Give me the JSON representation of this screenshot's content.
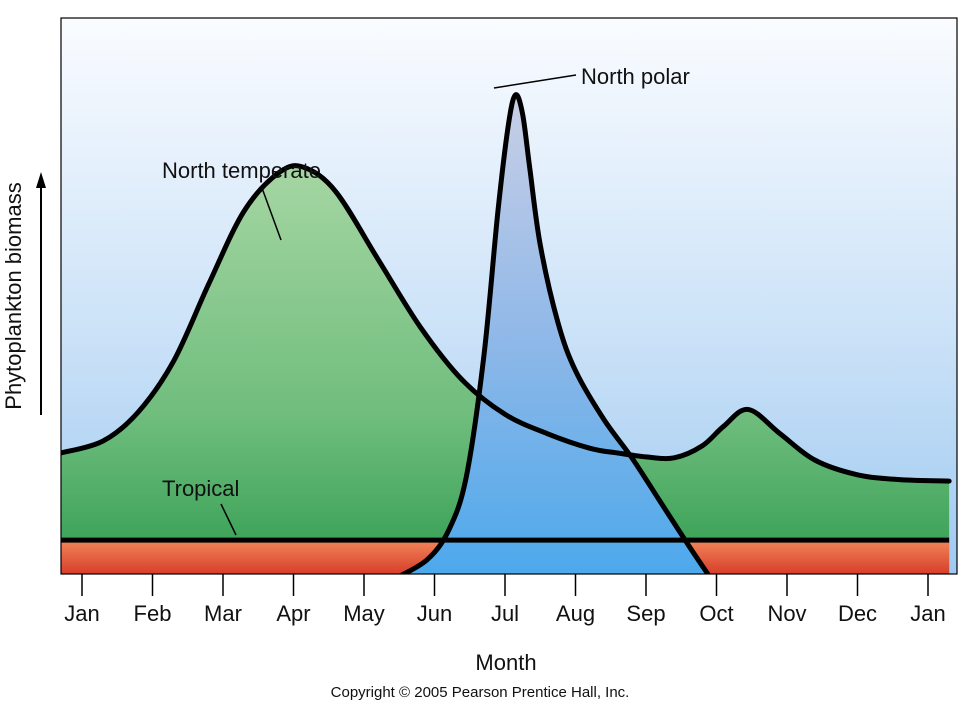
{
  "chart_data": {
    "type": "area",
    "title": "",
    "xlabel": "Month",
    "ylabel": "Phytoplankton biomass",
    "y_scale": "relative (no numeric ticks)",
    "grid": false,
    "legend": "none (series labeled directly on chart)",
    "categories": [
      "Jan",
      "Feb",
      "Mar",
      "Apr",
      "May",
      "Jun",
      "Jul",
      "Aug",
      "Sep",
      "Oct",
      "Nov",
      "Dec",
      "Jan"
    ],
    "xlim": [
      0,
      12.3
    ],
    "ylim": [
      0,
      100
    ],
    "series": [
      {
        "name": "North temperate",
        "color": "#3aa155",
        "x": [
          -0.3,
          0.3,
          0.8,
          1.3,
          1.8,
          2.3,
          2.8,
          3.15,
          3.6,
          4.2,
          4.8,
          5.4,
          6.0,
          6.6,
          7.2,
          7.6,
          8.0,
          8.4,
          8.8,
          9.1,
          9.45,
          9.9,
          10.4,
          11.0,
          11.6,
          12.3
        ],
        "y": [
          25.0,
          27.5,
          33.5,
          44.0,
          60.0,
          75.0,
          83.0,
          84.0,
          79.0,
          65.0,
          51.0,
          40.0,
          33.0,
          29.0,
          26.0,
          25.0,
          24.2,
          24.0,
          26.5,
          30.5,
          34.0,
          29.0,
          23.5,
          20.5,
          19.5,
          19.2
        ]
      },
      {
        "name": "North polar",
        "color": "#5aaeea",
        "x": [
          4.5,
          4.9,
          5.2,
          5.45,
          5.7,
          5.9,
          6.05,
          6.15,
          6.25,
          6.35,
          6.5,
          6.75,
          7.0,
          7.4,
          7.8,
          8.2,
          8.6,
          8.9
        ],
        "y": [
          -0.5,
          3.0,
          9.0,
          20.0,
          45.0,
          75.0,
          93.0,
          99.0,
          95.0,
          84.0,
          68.0,
          52.0,
          42.0,
          32.0,
          24.0,
          15.0,
          6.0,
          -0.5
        ]
      },
      {
        "name": "Tropical",
        "color": "#d8402e",
        "x": [
          -0.3,
          12.3
        ],
        "y": [
          7.0,
          7.0
        ]
      }
    ],
    "annotations": [
      "North temperate",
      "North polar",
      "Tropical"
    ],
    "footer": "Copyright © 2005 Pearson Prentice Hall, Inc."
  }
}
